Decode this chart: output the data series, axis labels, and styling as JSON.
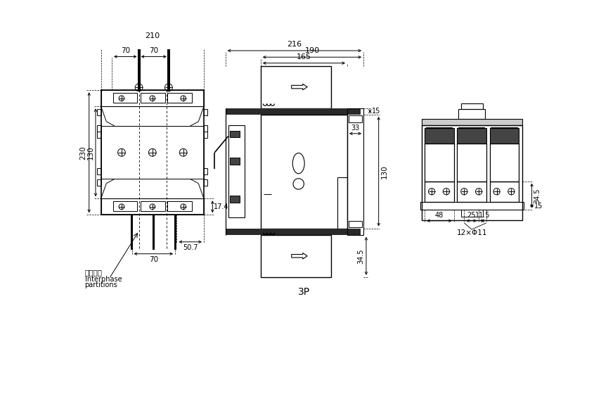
{
  "bg_color": "#ffffff",
  "lc": "#000000",
  "fig_w": 8.55,
  "fig_h": 5.87,
  "dpi": 100,
  "label_3p": "3P",
  "interphase_cn": "相间隔板",
  "interphase_en": "Interphase\npartitions",
  "dims": {
    "v1_w": "210",
    "v1_70a": "70",
    "v1_70b": "70",
    "v1_h230": "230",
    "v1_h130": "130",
    "v1_h17": "17.4",
    "v1_w507": "50.7",
    "v1_w70": "70",
    "v2_216": "216",
    "v2_190": "190",
    "v2_165": "165",
    "v2_h130": "130",
    "v2_h15": "15",
    "v2_w33": "33",
    "v2_h345": "34.5",
    "v3_h345": "34.5",
    "v3_w48": "48",
    "v3_w25": "25",
    "v3_w115": "11.5",
    "v3_h15": "15",
    "v3_hole": "12×Φ11"
  }
}
